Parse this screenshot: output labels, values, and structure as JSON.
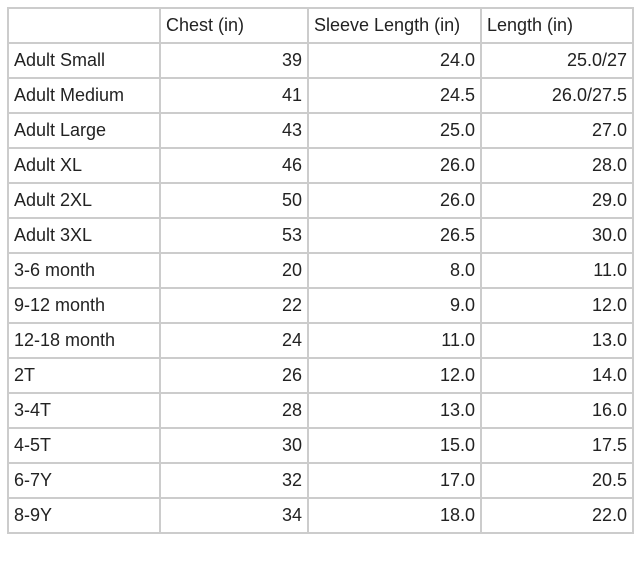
{
  "table": {
    "headers": [
      "",
      "Chest (in)",
      "Sleeve Length (in)",
      "Length (in)"
    ],
    "rows": [
      [
        "Adult Small",
        "39",
        "24.0",
        "25.0/27"
      ],
      [
        "Adult Medium",
        "41",
        "24.5",
        "26.0/27.5"
      ],
      [
        "Adult Large",
        "43",
        "25.0",
        "27.0"
      ],
      [
        "Adult XL",
        "46",
        "26.0",
        "28.0"
      ],
      [
        "Adult 2XL",
        "50",
        "26.0",
        "29.0"
      ],
      [
        "Adult 3XL",
        "53",
        "26.5",
        "30.0"
      ],
      [
        "3-6 month",
        "20",
        "8.0",
        "11.0"
      ],
      [
        "9-12 month",
        "22",
        "9.0",
        "12.0"
      ],
      [
        "12-18 month",
        "24",
        "11.0",
        "13.0"
      ],
      [
        "2T",
        "26",
        "12.0",
        "14.0"
      ],
      [
        "3-4T",
        "28",
        "13.0",
        "16.0"
      ],
      [
        "4-5T",
        "30",
        "15.0",
        "17.5"
      ],
      [
        "6-7Y",
        "32",
        "17.0",
        "20.5"
      ],
      [
        "8-9Y",
        "34",
        "18.0",
        "22.0"
      ]
    ]
  }
}
